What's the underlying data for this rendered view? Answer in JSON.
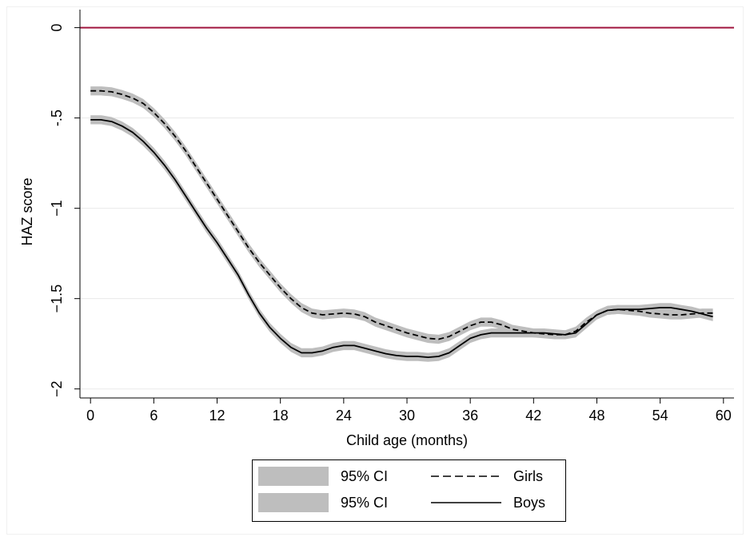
{
  "chart_data": {
    "type": "line",
    "xlabel": "Child age (months)",
    "ylabel": "HAZ score",
    "xlim": [
      -1,
      61
    ],
    "ylim": [
      -2.05,
      0.1
    ],
    "xticks": [
      0,
      6,
      12,
      18,
      24,
      30,
      36,
      42,
      48,
      54,
      60
    ],
    "yticks": [
      0,
      -0.5,
      -1,
      -1.5,
      -2
    ],
    "ytick_labels": [
      "0",
      "-.5",
      "−1",
      "−1.5",
      "−2"
    ],
    "xtick_labels": [
      "0",
      "6",
      "12",
      "18",
      "24",
      "30",
      "36",
      "42",
      "48",
      "54",
      "60"
    ],
    "grid": true,
    "reference_line": {
      "y": 0,
      "color": "#a0153e"
    },
    "legend": {
      "placement": "bottom",
      "entries": [
        {
          "label": "95% CI",
          "style": "band"
        },
        {
          "label": "Girls",
          "style": "dashed"
        },
        {
          "label": "95% CI",
          "style": "band"
        },
        {
          "label": "Boys",
          "style": "solid"
        }
      ]
    },
    "colors": {
      "line": "#000000",
      "band": "#bebebe",
      "refline": "#a0153e",
      "grid": "#eaeaea"
    },
    "x": [
      0,
      1,
      2,
      3,
      4,
      5,
      6,
      7,
      8,
      9,
      10,
      11,
      12,
      13,
      14,
      15,
      16,
      17,
      18,
      19,
      20,
      21,
      22,
      23,
      24,
      25,
      26,
      27,
      28,
      29,
      30,
      31,
      32,
      33,
      34,
      35,
      36,
      37,
      38,
      39,
      40,
      41,
      42,
      43,
      44,
      45,
      46,
      47,
      48,
      49,
      50,
      51,
      52,
      53,
      54,
      55,
      56,
      57,
      58,
      59
    ],
    "series": [
      {
        "name": "Girls",
        "style": "dashed",
        "ci_halfwidth": 0.025,
        "values": [
          -0.35,
          -0.35,
          -0.355,
          -0.37,
          -0.39,
          -0.42,
          -0.47,
          -0.53,
          -0.6,
          -0.68,
          -0.77,
          -0.86,
          -0.95,
          -1.04,
          -1.13,
          -1.22,
          -1.3,
          -1.37,
          -1.44,
          -1.5,
          -1.55,
          -1.58,
          -1.59,
          -1.585,
          -1.58,
          -1.585,
          -1.6,
          -1.63,
          -1.65,
          -1.67,
          -1.69,
          -1.705,
          -1.72,
          -1.725,
          -1.71,
          -1.68,
          -1.65,
          -1.63,
          -1.63,
          -1.645,
          -1.67,
          -1.68,
          -1.69,
          -1.695,
          -1.7,
          -1.7,
          -1.68,
          -1.63,
          -1.59,
          -1.565,
          -1.56,
          -1.565,
          -1.57,
          -1.58,
          -1.585,
          -1.59,
          -1.59,
          -1.585,
          -1.58,
          -1.58
        ]
      },
      {
        "name": "Boys",
        "style": "solid",
        "ci_halfwidth": 0.025,
        "values": [
          -0.51,
          -0.51,
          -0.52,
          -0.545,
          -0.58,
          -0.63,
          -0.69,
          -0.76,
          -0.84,
          -0.93,
          -1.02,
          -1.11,
          -1.19,
          -1.28,
          -1.37,
          -1.48,
          -1.58,
          -1.66,
          -1.72,
          -1.77,
          -1.8,
          -1.8,
          -1.79,
          -1.77,
          -1.76,
          -1.76,
          -1.775,
          -1.79,
          -1.805,
          -1.815,
          -1.82,
          -1.82,
          -1.825,
          -1.82,
          -1.8,
          -1.76,
          -1.72,
          -1.7,
          -1.69,
          -1.69,
          -1.69,
          -1.69,
          -1.69,
          -1.69,
          -1.695,
          -1.7,
          -1.69,
          -1.64,
          -1.59,
          -1.565,
          -1.56,
          -1.56,
          -1.56,
          -1.555,
          -1.55,
          -1.55,
          -1.56,
          -1.57,
          -1.585,
          -1.6
        ]
      }
    ]
  }
}
